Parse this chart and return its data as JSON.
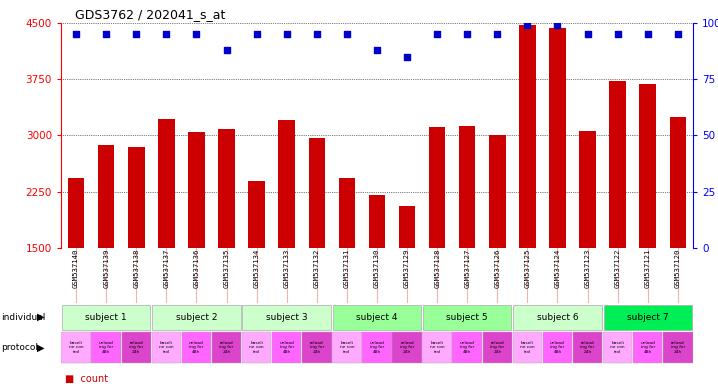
{
  "title": "GDS3762 / 202041_s_at",
  "samples": [
    "GSM537140",
    "GSM537139",
    "GSM537138",
    "GSM537137",
    "GSM537136",
    "GSM537135",
    "GSM537134",
    "GSM537133",
    "GSM537132",
    "GSM537131",
    "GSM537130",
    "GSM537129",
    "GSM537128",
    "GSM537127",
    "GSM537126",
    "GSM537125",
    "GSM537124",
    "GSM537123",
    "GSM537122",
    "GSM537121",
    "GSM537120"
  ],
  "counts": [
    2430,
    2870,
    2840,
    3220,
    3050,
    3090,
    2390,
    3210,
    2960,
    2430,
    2200,
    2060,
    3110,
    3130,
    3000,
    4480,
    4430,
    3060,
    3720,
    3680,
    3250
  ],
  "percentiles": [
    95,
    95,
    95,
    95,
    95,
    88,
    95,
    95,
    95,
    95,
    88,
    85,
    95,
    95,
    95,
    99,
    99,
    95,
    95,
    95,
    95
  ],
  "ylim_left": [
    1500,
    4500
  ],
  "ylim_right": [
    0,
    100
  ],
  "yticks_left": [
    1500,
    2250,
    3000,
    3750,
    4500
  ],
  "yticks_right": [
    0,
    25,
    50,
    75,
    100
  ],
  "bar_color": "#cc0000",
  "dot_color": "#0000cc",
  "subjects": [
    {
      "label": "subject 1",
      "start": 0,
      "end": 3,
      "color": "#ccffcc"
    },
    {
      "label": "subject 2",
      "start": 3,
      "end": 6,
      "color": "#ccffcc"
    },
    {
      "label": "subject 3",
      "start": 6,
      "end": 9,
      "color": "#ccffcc"
    },
    {
      "label": "subject 4",
      "start": 9,
      "end": 12,
      "color": "#99ff99"
    },
    {
      "label": "subject 5",
      "start": 12,
      "end": 15,
      "color": "#99ff99"
    },
    {
      "label": "subject 6",
      "start": 15,
      "end": 18,
      "color": "#ccffcc"
    },
    {
      "label": "subject 7",
      "start": 18,
      "end": 21,
      "color": "#00ee55"
    }
  ],
  "protocol_labels": [
    "baseli\nne con\ntrol",
    "unload\ning for\n48h",
    "reload\ning for\n24h"
  ],
  "protocol_colors": [
    "#ffaaff",
    "#ff66ff",
    "#dd44cc"
  ],
  "grid_color": "#888888",
  "background_color": "#ffffff",
  "xticklabel_bg": "#d8d8d8"
}
